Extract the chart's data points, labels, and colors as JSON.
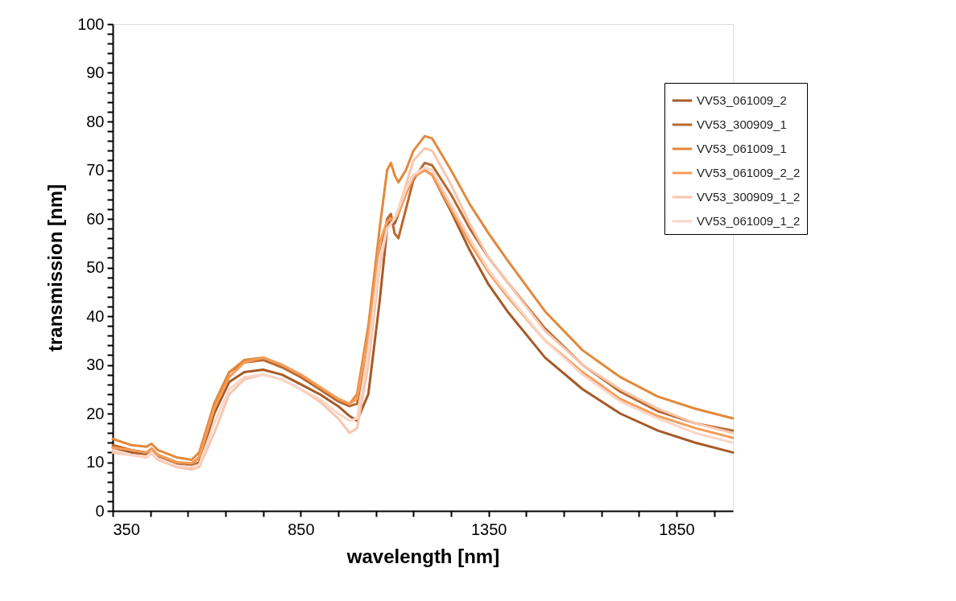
{
  "chart_data": {
    "type": "line",
    "xlabel": "wavelength [nm]",
    "ylabel": "transmission [nm]",
    "x": [
      350,
      400,
      440,
      453,
      470,
      520,
      560,
      580,
      620,
      660,
      700,
      750,
      800,
      850,
      900,
      950,
      980,
      1000,
      1030,
      1060,
      1080,
      1090,
      1100,
      1110,
      1130,
      1150,
      1180,
      1200,
      1250,
      1300,
      1350,
      1400,
      1500,
      1600,
      1700,
      1800,
      1900,
      2000
    ],
    "xlim": [
      350,
      2000
    ],
    "xticks": [
      350,
      {
        "value": 450,
        "label": null
      },
      {
        "value": 550,
        "label": null
      },
      {
        "value": 650,
        "label": null
      },
      {
        "value": 750,
        "label": null
      },
      850,
      {
        "value": 950,
        "label": null
      },
      {
        "value": 1050,
        "label": null
      },
      {
        "value": 1150,
        "label": null
      },
      {
        "value": 1250,
        "label": null
      },
      1350,
      {
        "value": 1450,
        "label": null
      },
      {
        "value": 1550,
        "label": null
      },
      {
        "value": 1650,
        "label": null
      },
      {
        "value": 1750,
        "label": null
      },
      1850,
      {
        "value": 1950,
        "label": null
      }
    ],
    "ylim": [
      0,
      100
    ],
    "yticks": [
      0,
      {
        "value": 2,
        "label": null
      },
      {
        "value": 4,
        "label": null
      },
      {
        "value": 6,
        "label": null
      },
      {
        "value": 8,
        "label": null
      },
      10,
      {
        "value": 12,
        "label": null
      },
      {
        "value": 14,
        "label": null
      },
      {
        "value": 16,
        "label": null
      },
      {
        "value": 18,
        "label": null
      },
      20,
      {
        "value": 22,
        "label": null
      },
      {
        "value": 24,
        "label": null
      },
      {
        "value": 26,
        "label": null
      },
      {
        "value": 28,
        "label": null
      },
      30,
      {
        "value": 32,
        "label": null
      },
      {
        "value": 34,
        "label": null
      },
      {
        "value": 36,
        "label": null
      },
      {
        "value": 38,
        "label": null
      },
      40,
      {
        "value": 42,
        "label": null
      },
      {
        "value": 44,
        "label": null
      },
      {
        "value": 46,
        "label": null
      },
      {
        "value": 48,
        "label": null
      },
      50,
      {
        "value": 52,
        "label": null
      },
      {
        "value": 54,
        "label": null
      },
      {
        "value": 56,
        "label": null
      },
      {
        "value": 58,
        "label": null
      },
      60,
      {
        "value": 62,
        "label": null
      },
      {
        "value": 64,
        "label": null
      },
      {
        "value": 66,
        "label": null
      },
      {
        "value": 68,
        "label": null
      },
      70,
      {
        "value": 72,
        "label": null
      },
      {
        "value": 74,
        "label": null
      },
      {
        "value": 76,
        "label": null
      },
      {
        "value": 78,
        "label": null
      },
      80,
      {
        "value": 82,
        "label": null
      },
      {
        "value": 84,
        "label": null
      },
      {
        "value": 86,
        "label": null
      },
      {
        "value": 88,
        "label": null
      },
      90,
      {
        "value": 92,
        "label": null
      },
      {
        "value": 94,
        "label": null
      },
      {
        "value": 96,
        "label": null
      },
      {
        "value": 98,
        "label": null
      },
      100
    ],
    "grid": false,
    "legend": "top right",
    "marker": "none",
    "line_style": "solid",
    "series": [
      {
        "name": "VV53_061009_2",
        "color": "#a65a28",
        "values": [
          13,
          12,
          11.5,
          12,
          11,
          9.5,
          9,
          10,
          20,
          26.5,
          28.5,
          29,
          28,
          26,
          24,
          21.5,
          19.5,
          18.5,
          24,
          43,
          58,
          60,
          59,
          61,
          66,
          69,
          70,
          69,
          61.5,
          53.5,
          46.5,
          41,
          31.5,
          25,
          20,
          16.5,
          14,
          12
        ]
      },
      {
        "name": "VV53_300909_1",
        "color": "#b8682e",
        "values": [
          13.5,
          12.5,
          12,
          12.8,
          11.5,
          10,
          9.5,
          11,
          22,
          28.5,
          30.5,
          31,
          29.5,
          27.5,
          25,
          22.5,
          21.5,
          22,
          33,
          52,
          60,
          61,
          57,
          56,
          62,
          68,
          71.5,
          71,
          65,
          58,
          52,
          47,
          37.5,
          30,
          24.5,
          20.5,
          18,
          16.5
        ]
      },
      {
        "name": "VV53_061009_1",
        "color": "#e2893a",
        "values": [
          14.8,
          13.5,
          13.2,
          13.8,
          12.5,
          11,
          10.5,
          12,
          22,
          28.5,
          31,
          31.5,
          30,
          28,
          25.5,
          23,
          22,
          24,
          38,
          58,
          70,
          71.5,
          69,
          67.5,
          70,
          74,
          77,
          76.5,
          70,
          63,
          57,
          51.5,
          41,
          33,
          27.5,
          23.5,
          21,
          19
        ]
      },
      {
        "name": "VV53_061009_2_2",
        "color": "#f59c58",
        "values": [
          13,
          12.5,
          12,
          12.8,
          11.5,
          10,
          9.8,
          11,
          21,
          27.5,
          30.5,
          31.5,
          30,
          28,
          25.5,
          23,
          22,
          23,
          36,
          55,
          59.5,
          60,
          60,
          61,
          65,
          68.5,
          70,
          69,
          62,
          55,
          49,
          44,
          35,
          28.5,
          23,
          19.5,
          17,
          15
        ]
      },
      {
        "name": "VV53_300909_1_2",
        "color": "#f8c6ae",
        "values": [
          12,
          11.5,
          11,
          11.8,
          10.5,
          9,
          8.5,
          9,
          16,
          24,
          27,
          28,
          27,
          25,
          22.5,
          19,
          16,
          17,
          30,
          50,
          58,
          59,
          60,
          62,
          67,
          72,
          74.5,
          74,
          67,
          59,
          52,
          47,
          37,
          30,
          25,
          21,
          18,
          16
        ]
      },
      {
        "name": "VV53_061009_1_2",
        "color": "#fad6c6",
        "values": [
          12.5,
          11.5,
          11.2,
          12,
          10.8,
          9.3,
          9,
          9.5,
          18,
          25,
          27.5,
          28,
          27,
          25,
          23,
          20,
          18.5,
          19,
          33,
          52,
          58,
          59,
          60,
          62,
          66,
          69,
          70.5,
          70,
          63,
          56,
          49.5,
          44.5,
          35,
          28,
          22.5,
          19,
          16,
          14
        ]
      }
    ]
  }
}
